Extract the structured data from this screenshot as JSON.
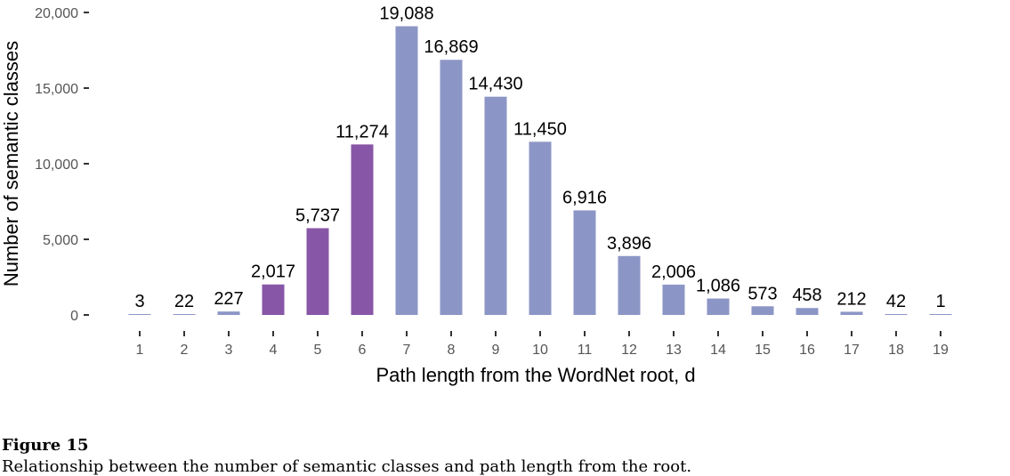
{
  "chart_data": {
    "type": "bar",
    "title": "",
    "xlabel": "Path length from the WordNet root, d",
    "ylabel": "Number of semantic classes",
    "categories": [
      "1",
      "2",
      "3",
      "4",
      "5",
      "6",
      "7",
      "8",
      "9",
      "10",
      "11",
      "12",
      "13",
      "14",
      "15",
      "16",
      "17",
      "18",
      "19"
    ],
    "values": [
      3,
      22,
      227,
      2017,
      5737,
      11274,
      19088,
      16869,
      14430,
      11450,
      6916,
      3896,
      2006,
      1086,
      573,
      458,
      212,
      42,
      1
    ],
    "data_labels": [
      "3",
      "22",
      "227",
      "2,017",
      "5,737",
      "11,274",
      "19,088",
      "16,869",
      "14,430",
      "11,450",
      "6,916",
      "3,896",
      "2,006",
      "1,086",
      "573",
      "458",
      "212",
      "42",
      "1"
    ],
    "y_ticks": [
      0,
      5000,
      10000,
      15000,
      20000
    ],
    "y_tick_labels": [
      "0",
      "5,000",
      "10,000",
      "15,000",
      "20,000"
    ],
    "ylim": [
      0,
      20000
    ],
    "grid": false,
    "legend": "none",
    "colors": {
      "highlight": "#8856a7",
      "default": "#8c96c6",
      "highlighted_categories": [
        "4",
        "5",
        "6"
      ]
    }
  },
  "figure": {
    "caption": "Figure 15",
    "description": "Relationship between the number of semantic classes and path length from the root."
  }
}
